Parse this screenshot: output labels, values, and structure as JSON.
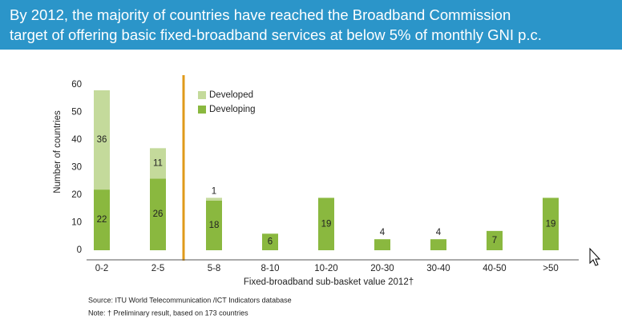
{
  "chart_data": {
    "type": "bar",
    "stacked": true,
    "title": [
      "By 2012, the majority of countries have reached the Broadband Commission",
      "target of offering basic fixed-broadband services at below 5% of monthly GNI p.c."
    ],
    "y_label": "Number of countries",
    "x_label": "Fixed-broadband sub-basket value 2012†",
    "source": "Source:  ITU World Telecommunication /ICT Indicators database",
    "note": "Note: † Preliminary result, based on 173 countries",
    "categories": [
      "0-2",
      "2-5",
      "5-8",
      "8-10",
      "10-20",
      "20-30",
      "30-40",
      "40-50",
      ">50"
    ],
    "series": [
      {
        "name": "Developing",
        "color": "#8ab83f",
        "values": [
          22,
          26,
          18,
          6,
          19,
          4,
          4,
          7,
          19
        ]
      },
      {
        "name": "Developed",
        "color": "#c4da9b",
        "values": [
          36,
          11,
          1,
          null,
          null,
          null,
          null,
          null,
          null
        ]
      }
    ],
    "ylim": [
      0,
      60
    ],
    "yticks": [
      0,
      10,
      20,
      30,
      40,
      50,
      60
    ],
    "grid": false
  }
}
